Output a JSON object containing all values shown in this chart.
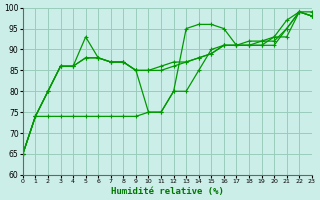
{
  "bg_color": "#cceee8",
  "grid_color": "#99ccbb",
  "line_color": "#009900",
  "xlabel": "Humidité relative (%)",
  "xlabel_color": "#007700",
  "ylim": [
    60,
    100
  ],
  "xlim": [
    0,
    23
  ],
  "yticks": [
    60,
    65,
    70,
    75,
    80,
    85,
    90,
    95,
    100
  ],
  "xticks": [
    0,
    1,
    2,
    3,
    4,
    5,
    6,
    7,
    8,
    9,
    10,
    11,
    12,
    13,
    14,
    15,
    16,
    17,
    18,
    19,
    20,
    21,
    22,
    23
  ],
  "series": [
    [
      65,
      74,
      74,
      74,
      74,
      74,
      74,
      74,
      74,
      74,
      75,
      75,
      80,
      80,
      85,
      90,
      91,
      91,
      91,
      92,
      93,
      93,
      99,
      99
    ],
    [
      65,
      74,
      80,
      86,
      86,
      93,
      88,
      87,
      87,
      85,
      75,
      75,
      80,
      95,
      96,
      96,
      95,
      91,
      91,
      91,
      93,
      97,
      99,
      98
    ],
    [
      65,
      74,
      80,
      86,
      86,
      88,
      88,
      87,
      87,
      85,
      85,
      85,
      86,
      87,
      88,
      89,
      91,
      91,
      91,
      91,
      91,
      95,
      99,
      98
    ],
    [
      65,
      74,
      80,
      86,
      86,
      88,
      88,
      87,
      87,
      85,
      85,
      86,
      87,
      87,
      88,
      89,
      91,
      91,
      92,
      92,
      92,
      95,
      99,
      98
    ]
  ]
}
